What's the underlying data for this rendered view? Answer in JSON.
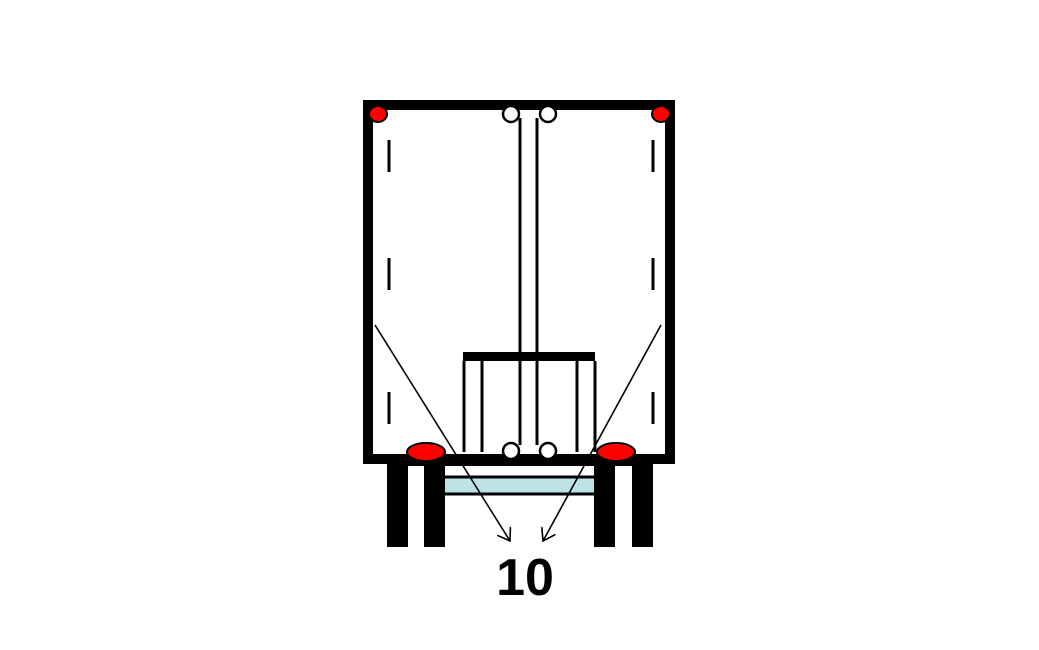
{
  "diagram": {
    "label": "10",
    "colors": {
      "outline": "#000000",
      "background": "#ffffff",
      "marker_light": "#ff0000",
      "bumper": "#bde3e6"
    },
    "icons": {
      "upper_markers": "red-clearance-light-icon",
      "lower_markers": "red-tail-light-icon",
      "hinges": "hinge-icon"
    }
  }
}
